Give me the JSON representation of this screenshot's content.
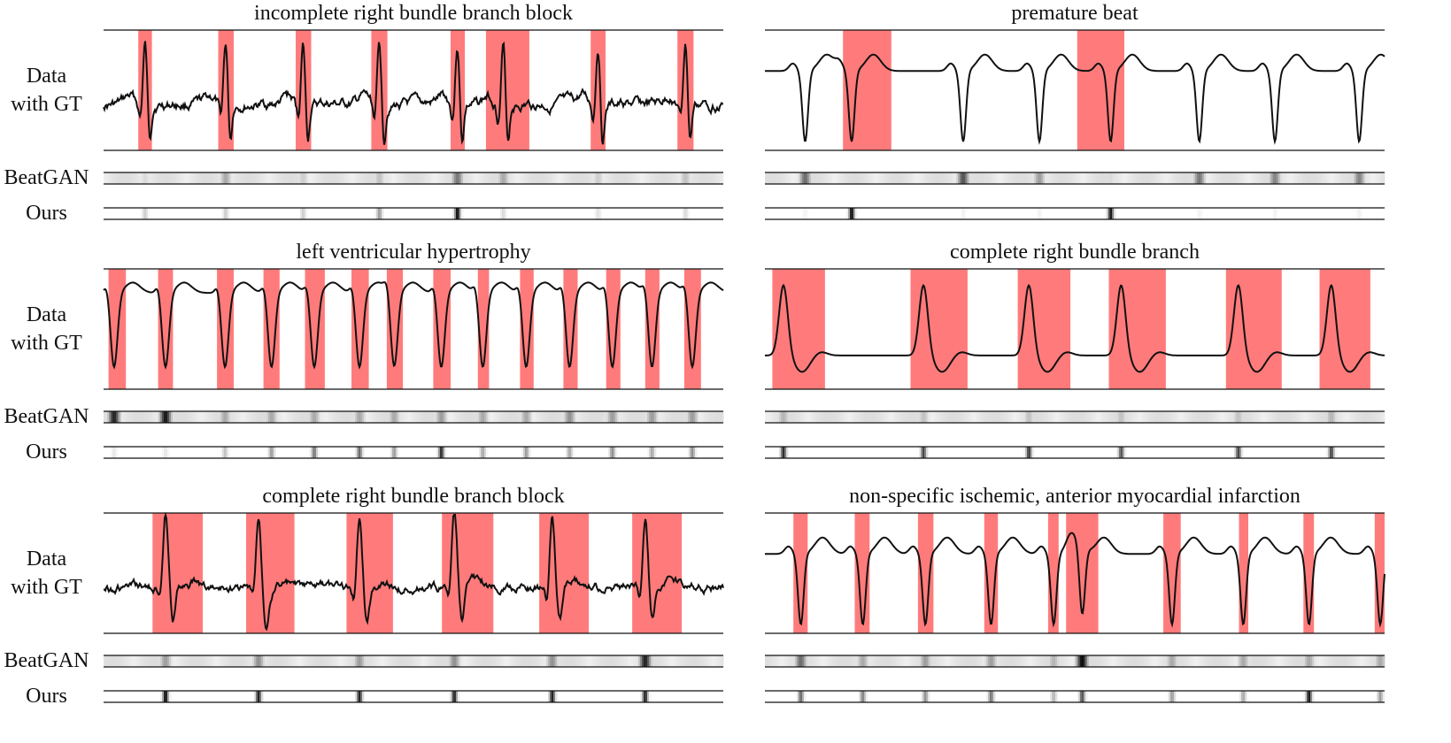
{
  "figure": {
    "row_labels": {
      "data": [
        "Data",
        "with GT"
      ],
      "beatgan": "BeatGAN",
      "ours": "Ours"
    }
  },
  "chart_data": [
    {
      "type": "line",
      "title": "incomplete right bundle branch block",
      "morph": "qrs_up",
      "gt_regions": [
        [
          0.056,
          0.078
        ],
        [
          0.185,
          0.21
        ],
        [
          0.31,
          0.335
        ],
        [
          0.432,
          0.458
        ],
        [
          0.56,
          0.583
        ],
        [
          0.617,
          0.687
        ],
        [
          0.786,
          0.81
        ],
        [
          0.926,
          0.952
        ]
      ],
      "beats": [
        0.067,
        0.197,
        0.322,
        0.445,
        0.571,
        0.645,
        0.798,
        0.939
      ],
      "beatgan": [
        0.15,
        0.35,
        0.2,
        0.25,
        0.55,
        0.35,
        0.2,
        0.25
      ],
      "ours": [
        0.2,
        0.2,
        0.2,
        0.4,
        1.0,
        0.15,
        0.12,
        0.15
      ],
      "baseline_noise": 0.07
    },
    {
      "type": "line",
      "title": "premature beat",
      "morph": "qs_down",
      "gt_regions": [
        [
          0.126,
          0.204
        ],
        [
          0.504,
          0.58
        ]
      ],
      "beats": [
        0.065,
        0.14,
        0.32,
        0.443,
        0.558,
        0.701,
        0.823,
        0.959
      ],
      "beatgan": [
        0.6,
        0.05,
        0.7,
        0.4,
        0.15,
        0.55,
        0.5,
        0.5
      ],
      "ours": [
        0.05,
        1.0,
        0.05,
        0.05,
        0.95,
        0.05,
        0.05,
        0.05
      ],
      "baseline_noise": 0.0
    },
    {
      "type": "line",
      "title": "left ventricular hypertrophy",
      "morph": "deep_s",
      "gt_regions": [
        [
          0.008,
          0.036
        ],
        [
          0.088,
          0.112
        ],
        [
          0.183,
          0.21
        ],
        [
          0.258,
          0.284
        ],
        [
          0.325,
          0.357
        ],
        [
          0.4,
          0.428
        ],
        [
          0.457,
          0.483
        ],
        [
          0.532,
          0.56
        ],
        [
          0.604,
          0.622
        ],
        [
          0.672,
          0.694
        ],
        [
          0.742,
          0.765
        ],
        [
          0.811,
          0.834
        ],
        [
          0.874,
          0.897
        ],
        [
          0.937,
          0.964
        ]
      ],
      "beats": [
        0.017,
        0.1,
        0.196,
        0.271,
        0.34,
        0.413,
        0.469,
        0.545,
        0.612,
        0.682,
        0.752,
        0.821,
        0.885,
        0.95
      ],
      "beatgan": [
        0.9,
        0.95,
        0.35,
        0.35,
        0.35,
        0.35,
        0.35,
        0.4,
        0.35,
        0.35,
        0.45,
        0.4,
        0.4,
        0.4
      ],
      "ours": [
        0.1,
        0.1,
        0.25,
        0.4,
        0.55,
        0.6,
        0.4,
        0.85,
        0.35,
        0.4,
        0.35,
        0.45,
        0.35,
        0.45
      ],
      "baseline_noise": 0.0
    },
    {
      "type": "line",
      "title": "complete right bundle branch",
      "morph": "rbbb_wide",
      "gt_regions": [
        [
          0.012,
          0.097
        ],
        [
          0.235,
          0.327
        ],
        [
          0.408,
          0.493
        ],
        [
          0.555,
          0.647
        ],
        [
          0.744,
          0.834
        ],
        [
          0.895,
          0.977
        ]
      ],
      "beats": [
        0.03,
        0.256,
        0.426,
        0.575,
        0.764,
        0.914
      ],
      "beatgan": [
        0.3,
        0.25,
        0.25,
        0.25,
        0.25,
        0.3
      ],
      "ours": [
        0.85,
        0.75,
        0.8,
        0.7,
        0.75,
        0.75
      ],
      "baseline_noise": 0.0
    },
    {
      "type": "line",
      "title": "complete right bundle branch block",
      "morph": "rbbb_r",
      "gt_regions": [
        [
          0.079,
          0.16
        ],
        [
          0.23,
          0.308
        ],
        [
          0.392,
          0.467
        ],
        [
          0.546,
          0.629
        ],
        [
          0.703,
          0.783
        ],
        [
          0.853,
          0.933
        ]
      ],
      "beats": [
        0.1,
        0.25,
        0.413,
        0.566,
        0.724,
        0.874
      ],
      "beatgan": [
        0.4,
        0.45,
        0.4,
        0.45,
        0.45,
        0.9
      ],
      "ours": [
        1.0,
        0.9,
        0.9,
        0.9,
        0.9,
        0.9
      ],
      "baseline_noise": 0.06
    },
    {
      "type": "line",
      "title": "non-specific ischemic, anterior myocardial infarction",
      "morph": "qs_down",
      "gt_regions": [
        [
          0.046,
          0.069
        ],
        [
          0.145,
          0.169
        ],
        [
          0.247,
          0.272
        ],
        [
          0.354,
          0.376
        ],
        [
          0.457,
          0.474
        ],
        [
          0.486,
          0.538
        ],
        [
          0.643,
          0.671
        ],
        [
          0.765,
          0.78
        ],
        [
          0.869,
          0.886
        ],
        [
          0.984,
          1.0
        ]
      ],
      "beats": [
        0.058,
        0.158,
        0.259,
        0.365,
        0.466,
        0.512,
        0.657,
        0.772,
        0.878,
        0.993
      ],
      "beatgan": [
        0.6,
        0.35,
        0.4,
        0.4,
        0.3,
        1.0,
        0.35,
        0.35,
        0.35,
        0.35
      ],
      "ours": [
        0.6,
        0.5,
        0.45,
        0.55,
        0.3,
        0.7,
        0.4,
        0.35,
        0.95,
        0.4
      ],
      "baseline_noise": 0.0
    }
  ]
}
